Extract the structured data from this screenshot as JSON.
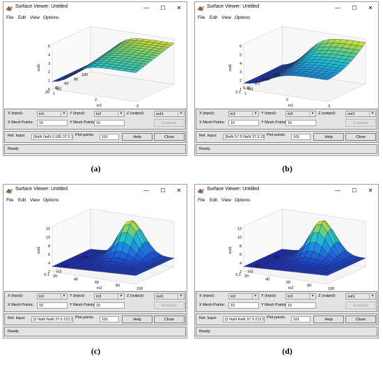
{
  "window_title": "Surface Viewer: Untitled",
  "menu": [
    "File",
    "Edit",
    "View",
    "Options"
  ],
  "labels": {
    "x_input": "X (input):",
    "y_input": "Y (input):",
    "z_output": "Z (output):",
    "x_mesh": "X Mesh Points:",
    "y_mesh": "Y Mesh Points:",
    "ref_input": "Ref. Input:",
    "plot_points": "Plot points:",
    "help": "Help",
    "close": "Close",
    "evaluate": "Evaluate",
    "status": "Ready",
    "z_axis_label": "out1"
  },
  "colors": {
    "surface_low": "#1a2fb0",
    "surface_mid": "#1fb5c8",
    "surface_high": "#f2e01e"
  },
  "panels": [
    {
      "caption": "(a)",
      "x_input": "in1",
      "y_input": "in2",
      "z_output": "out1",
      "x_mesh": "15",
      "y_mesh": "15",
      "ref_input": "[NaN NaN 0.185 37.5 212",
      "plot_points": "101",
      "x_axis_label": "in1",
      "y_axis_label": "in2",
      "x_ticks": [
        "1",
        "2",
        "3"
      ],
      "y_ticks": [
        "100",
        "80",
        "60",
        "40",
        "20"
      ],
      "z_ticks": [
        "5",
        "4",
        "3",
        "2",
        "1",
        "0"
      ]
    },
    {
      "caption": "(b)",
      "x_input": "in1",
      "y_input": "in3",
      "z_output": "out1",
      "x_mesh": "15",
      "y_mesh": "15",
      "ref_input": "[NaN 57.5 NaN 37.5 212.5",
      "plot_points": "101",
      "x_axis_label": "in1",
      "y_axis_label": "in3",
      "x_ticks": [
        "1",
        "2",
        "3"
      ],
      "y_ticks": [
        "0.3",
        "0.25",
        "0.2",
        "0.15",
        "0.1"
      ],
      "z_ticks": [
        "6",
        "5",
        "4",
        "3",
        "2",
        "1"
      ]
    },
    {
      "caption": "(c)",
      "x_input": "in2",
      "y_input": "in3",
      "z_output": "out1",
      "x_mesh": "15",
      "y_mesh": "15",
      "ref_input": "[2 NaN NaN 37.5 212.5 42",
      "plot_points": "101",
      "x_axis_label": "in2",
      "y_axis_label": "in3",
      "x_ticks": [
        "20",
        "40",
        "60",
        "80",
        "100"
      ],
      "y_ticks": [
        "0.3",
        "0.2",
        "0.1"
      ],
      "z_ticks": [
        "12",
        "10",
        "8",
        "6",
        "4",
        "2"
      ]
    },
    {
      "caption": "(d)",
      "x_input": "in2",
      "y_input": "in3",
      "z_output": "out1",
      "x_mesh": "15",
      "y_mesh": "15",
      "ref_input": "[2 NaN NaN 37.5 212.5 42",
      "plot_points": "101",
      "x_axis_label": "in2",
      "y_axis_label": "in3",
      "x_ticks": [
        "20",
        "40",
        "60",
        "80",
        "100"
      ],
      "y_ticks": [
        "0.3",
        "0.2",
        "0.1"
      ],
      "z_ticks": [
        "12",
        "10",
        "8",
        "6",
        "4",
        "2"
      ]
    }
  ]
}
